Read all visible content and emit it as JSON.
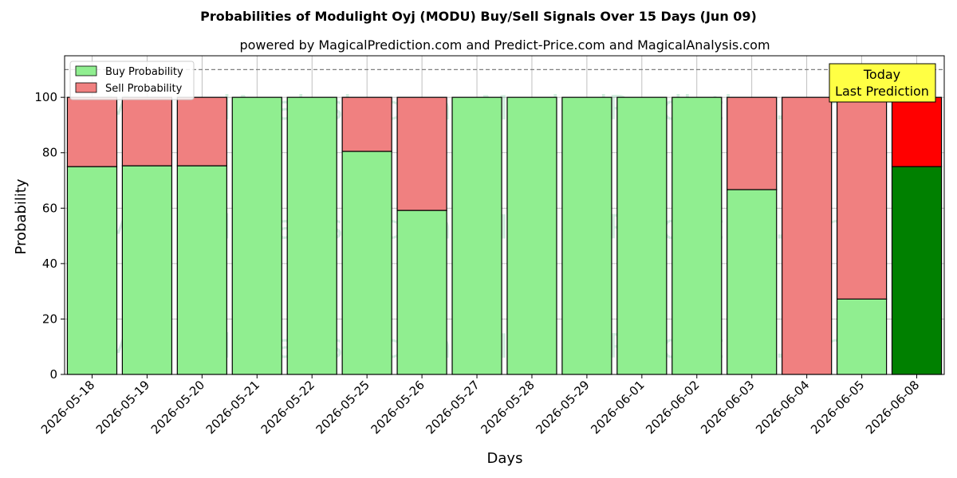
{
  "chart_data": {
    "type": "bar",
    "stacked": true,
    "title": "Probabilities of Modulight Oyj (MODU) Buy/Sell Signals Over 15 Days (Jun 09)",
    "subtitle": "powered by MagicalPrediction.com and Predict-Price.com and MagicalAnalysis.com",
    "xlabel": "Days",
    "ylabel": "Probability",
    "ylim": [
      0,
      115
    ],
    "yticks": [
      0,
      20,
      40,
      60,
      80,
      100
    ],
    "grid": true,
    "legend_position": "top-left",
    "reference_line": 110,
    "categories": [
      "2026-05-18",
      "2026-05-19",
      "2026-05-20",
      "2026-05-21",
      "2026-05-22",
      "2026-05-25",
      "2026-05-26",
      "2026-05-27",
      "2026-05-28",
      "2026-05-29",
      "2026-06-01",
      "2026-06-02",
      "2026-06-03",
      "2026-06-04",
      "2026-06-05",
      "2026-06-08"
    ],
    "series": [
      {
        "name": "Buy Probability",
        "color": "#90ee90",
        "values": [
          75,
          75.3,
          75.3,
          100,
          100,
          80.5,
          59.2,
          100,
          100,
          100,
          100,
          100,
          66.7,
          0,
          27.2,
          75
        ]
      },
      {
        "name": "Sell Probability",
        "color": "#f08080",
        "values": [
          25,
          24.7,
          24.7,
          0,
          0,
          19.5,
          40.8,
          0,
          0,
          0,
          0,
          0,
          33.3,
          100,
          72.8,
          25
        ]
      }
    ],
    "highlight": {
      "index": 15,
      "buy_color": "#008000",
      "sell_color": "#ff0000",
      "label_line1": "Today",
      "label_line2": "Last Prediction",
      "label_color": "#ffff44"
    },
    "watermarks": [
      "MagicalAnalysis.com",
      "MagicalPrediction.com"
    ]
  }
}
